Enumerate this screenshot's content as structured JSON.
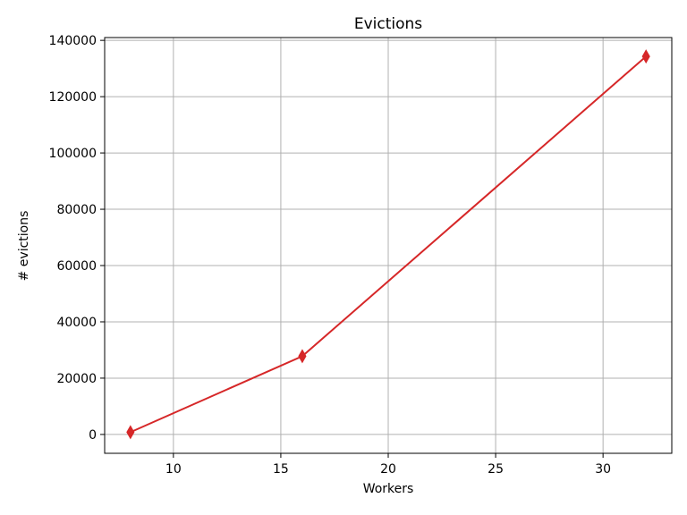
{
  "chart_data": {
    "type": "line",
    "title": "Evictions",
    "xlabel": "Workers",
    "ylabel": "# evictions",
    "xlim": [
      6.8,
      33.2
    ],
    "ylim": [
      -6700,
      141000
    ],
    "xticks": [
      10,
      15,
      20,
      25,
      30
    ],
    "yticks": [
      0,
      20000,
      40000,
      60000,
      80000,
      100000,
      120000,
      140000
    ],
    "grid": true,
    "series": [
      {
        "x": [
          8,
          16,
          32
        ],
        "y": [
          800,
          27800,
          134300
        ],
        "color": "#d62728",
        "marker": "thin-diamond"
      }
    ]
  }
}
